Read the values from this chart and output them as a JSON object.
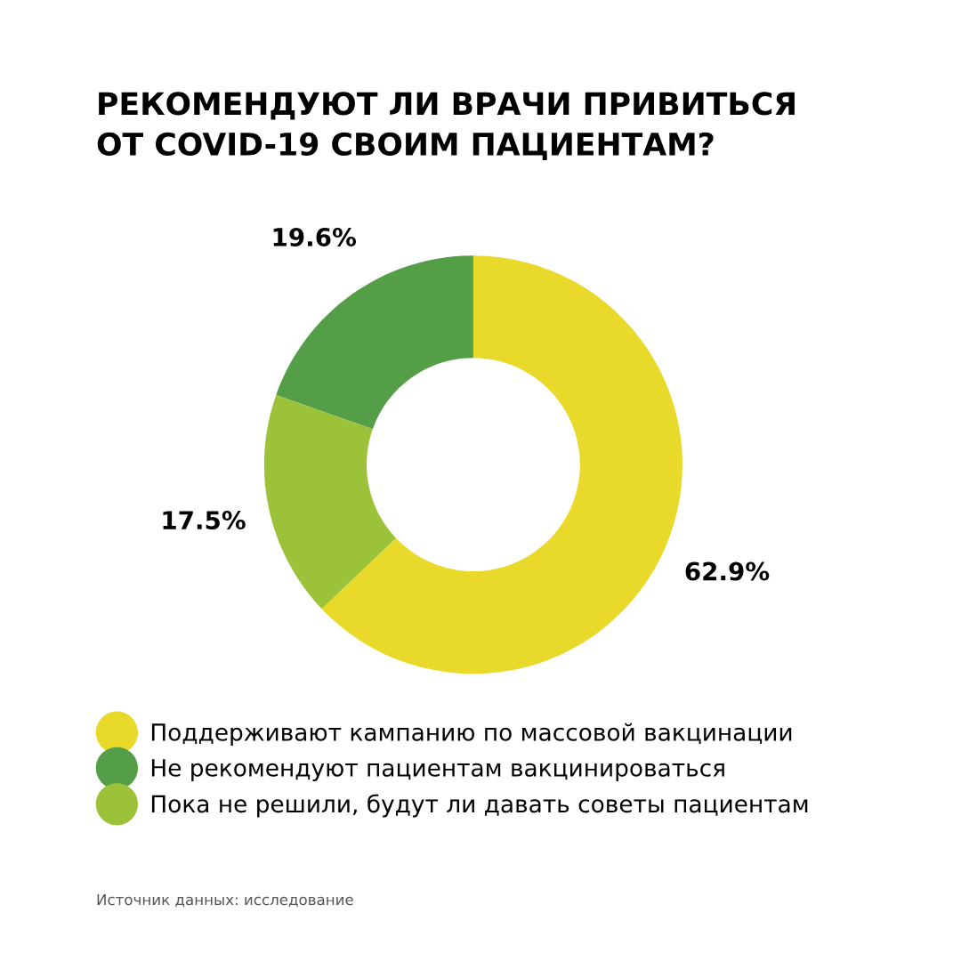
{
  "chart_data": {
    "type": "donut",
    "title": "РЕКОМЕНДУЮТ ЛИ ВРАЧИ ПРИВИТЬСЯ\nОТ COVID-19 СВОИМ ПАЦИЕНТАМ?",
    "categories": [
      "Поддерживают кампанию по массовой вакцинации",
      "Не рекомендуют пациентам вакцинироваться",
      "Пока не решили, будут ли давать советы пациентам"
    ],
    "values": [
      62.9,
      19.6,
      17.5
    ],
    "colors": [
      "#e8d92a",
      "#559e48",
      "#9cc23a"
    ],
    "value_labels": [
      "62.9%",
      "19.6%",
      "17.5%"
    ],
    "legend": "bottom",
    "annotations": [
      "Источник данных: исследование"
    ]
  }
}
